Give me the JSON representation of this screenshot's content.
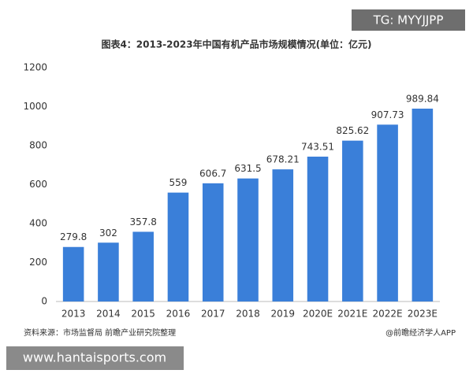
{
  "chart_data": {
    "type": "bar",
    "title": "图表4：2013-2023年中国有机产品市场规模情况(单位：亿元)",
    "categories": [
      "2013",
      "2014",
      "2015",
      "2016",
      "2017",
      "2018",
      "2019",
      "2020E",
      "2021E",
      "2022E",
      "2023E"
    ],
    "values": [
      279.8,
      302,
      357.8,
      559,
      606.7,
      631.5,
      678.21,
      743.51,
      825.62,
      907.73,
      989.84
    ],
    "color": "#3a7fd9",
    "ylim": [
      0,
      1200
    ],
    "yticks": [
      0,
      200,
      400,
      600,
      800,
      1000,
      1200
    ],
    "grid": false,
    "source": "资料来源：市场监督局 前瞻产业研究院整理",
    "credit": "@前瞻经济学人APP"
  },
  "overlay": {
    "tag": "TG: MYYJJPP",
    "site": "www.hantaisports.com"
  }
}
